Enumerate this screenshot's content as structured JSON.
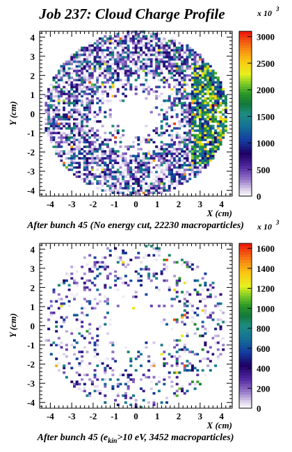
{
  "title": "Job 237: Cloud Charge Profile",
  "chart_data": [
    {
      "type": "heatmap",
      "caption": "After bunch 45 (No energy cut, 22230 macroparticles)",
      "xlabel": "X (cm)",
      "ylabel": "Y (cm)",
      "xlim": [
        -4.5,
        4.5
      ],
      "ylim": [
        -4.3,
        4.3
      ],
      "x_ticks": [
        "-4",
        "-3",
        "-2",
        "-1",
        "0",
        "1",
        "2",
        "3",
        "4"
      ],
      "y_ticks": [
        "-4",
        "-3",
        "-2",
        "-1",
        "0",
        "1",
        "2",
        "3",
        "4"
      ],
      "z_multiplier": "x 10",
      "z_multiplier_exp": "3",
      "zlim": [
        0,
        3100
      ],
      "z_ticks": [
        "0",
        "500",
        "1000",
        "1500",
        "2000",
        "2500",
        "3000"
      ],
      "distribution": {
        "shape": "annulus",
        "inner_radius": 1.2,
        "outer_radius": 4.3,
        "occupancy": 0.85,
        "typical_max": 3000,
        "hot_region": "right edge (x ≈ 3 to 4)"
      }
    },
    {
      "type": "heatmap",
      "caption_pre": "After bunch 45 (e",
      "caption_sub": "kin",
      "caption_post": ">10 eV, 3452 macroparticles)",
      "xlabel": "X (cm)",
      "ylabel": "Y (cm)",
      "xlim": [
        -4.5,
        4.5
      ],
      "ylim": [
        -4.3,
        4.3
      ],
      "x_ticks": [
        "-4",
        "-3",
        "-2",
        "-1",
        "0",
        "1",
        "2",
        "3",
        "4"
      ],
      "y_ticks": [
        "-4",
        "-3",
        "-2",
        "-1",
        "0",
        "1",
        "2",
        "3",
        "4"
      ],
      "z_multiplier": "x 10",
      "z_multiplier_exp": "3",
      "zlim": [
        0,
        1650
      ],
      "z_ticks": [
        "0",
        "200",
        "400",
        "600",
        "800",
        "1000",
        "1200",
        "1400",
        "1600"
      ],
      "distribution": {
        "shape": "annulus",
        "inner_radius": 1.2,
        "outer_radius": 4.3,
        "occupancy": 0.22,
        "typical_max": 1600,
        "hot_region": "right side (x ≈ 1.5 to 3)"
      }
    }
  ]
}
